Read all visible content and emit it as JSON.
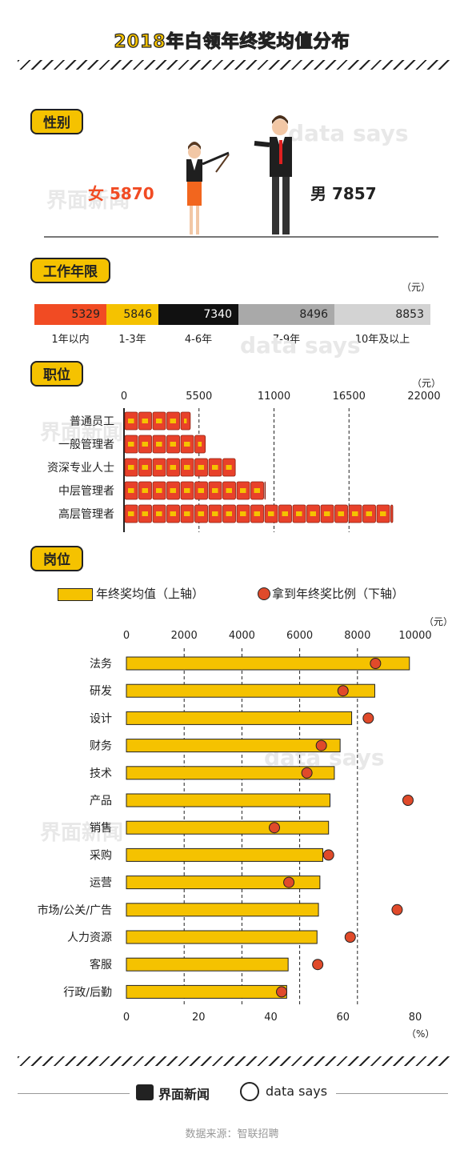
{
  "title": "2018年白领年终奖均值分布",
  "sections": {
    "gender": "性别",
    "experience": "工作年限",
    "position": "职位",
    "job": "岗位"
  },
  "gender": {
    "female_label": "女",
    "female_value": "5870",
    "male_label": "男",
    "male_value": "7857"
  },
  "experience": {
    "unit": "（元）",
    "segments": [
      {
        "label": "1年以内",
        "value": 5329,
        "color": "#f14b23"
      },
      {
        "label": "1-3年",
        "value": 5846,
        "color": "#f5c200"
      },
      {
        "label": "4-6年",
        "value": 7340,
        "color": "#111111"
      },
      {
        "label": "7-9年",
        "value": 8496,
        "color": "#a9a9a9"
      },
      {
        "label": "10年及以上",
        "value": 8853,
        "color": "#d3d3d3"
      }
    ]
  },
  "position": {
    "unit": "（元）",
    "ticks": [
      "0",
      "5500",
      "11000",
      "16500",
      "22000"
    ],
    "chart_data": {
      "type": "bar",
      "categories": [
        "普通员工",
        "一般管理者",
        "资深专业人士",
        "中层管理者",
        "高层管理者"
      ],
      "values": [
        4950,
        6050,
        8250,
        10450,
        19800
      ],
      "xlim": [
        0,
        22000
      ]
    }
  },
  "job": {
    "legend_bar": "年终奖均值（上轴）",
    "legend_dot": "拿到年终奖比例（下轴）",
    "top_unit": "（元）",
    "bottom_unit": "（%）",
    "top_ticks": [
      "0",
      "2000",
      "4000",
      "6000",
      "8000",
      "10000"
    ],
    "bottom_ticks": [
      "0",
      "20",
      "40",
      "60",
      "80"
    ],
    "chart_data": {
      "type": "bar",
      "categories": [
        "法务",
        "研发",
        "设计",
        "财务",
        "技术",
        "产品",
        "销售",
        "采购",
        "运营",
        "市场/公关/广告",
        "人力资源",
        "客服",
        "行政/后勤"
      ],
      "series": [
        {
          "name": "年终奖均值（上轴）",
          "values": [
            9800,
            8600,
            7800,
            7400,
            7200,
            7050,
            7000,
            6800,
            6700,
            6650,
            6600,
            5600,
            5550
          ]
        },
        {
          "name": "拿到年终奖比例（下轴）",
          "values": [
            69,
            60,
            67,
            54,
            50,
            78,
            41,
            56,
            45,
            75,
            62,
            53,
            43
          ]
        }
      ],
      "xlim_top": [
        0,
        10000
      ],
      "xlim_bottom": [
        0,
        80
      ]
    }
  },
  "footer": {
    "brand1": "界面新闻",
    "brand2": "data says",
    "source": "数据来源：智联招聘"
  },
  "watermarks": [
    "界面新闻",
    "data says"
  ]
}
